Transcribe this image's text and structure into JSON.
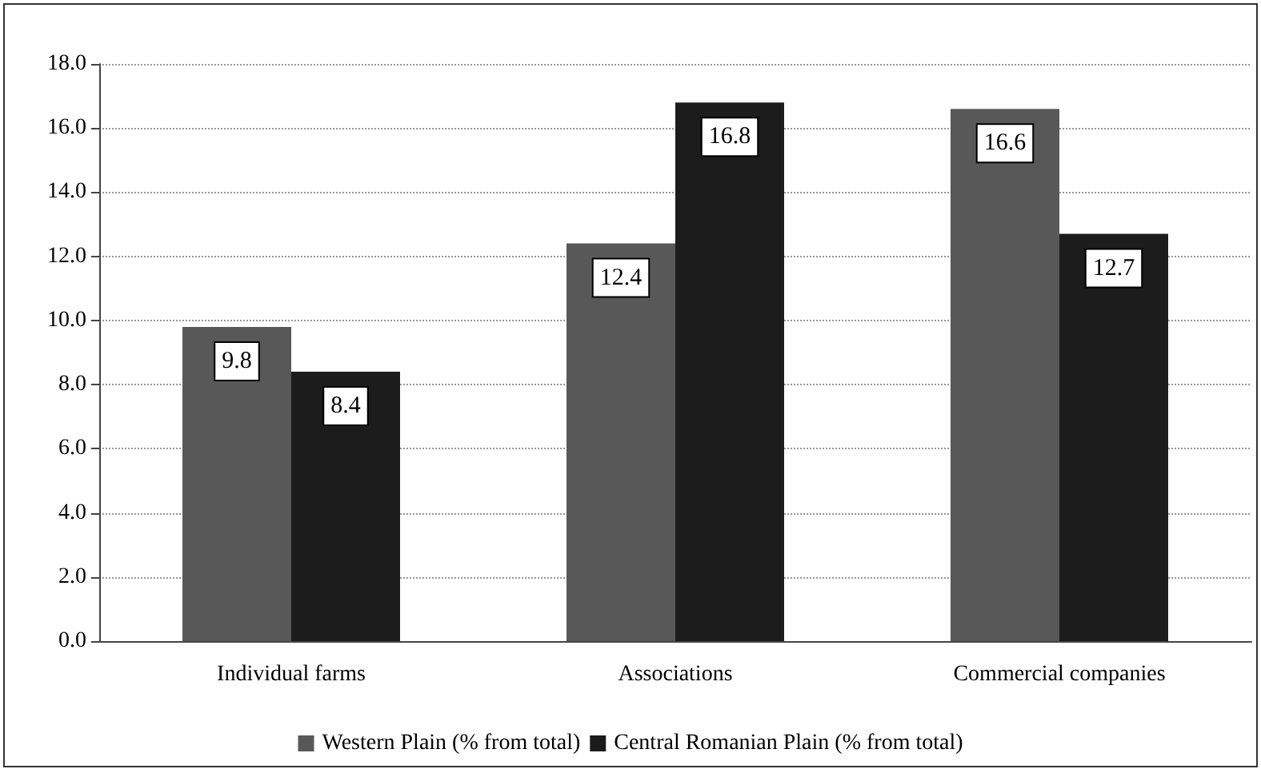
{
  "chart_data": {
    "type": "bar",
    "categories": [
      "Individual farms",
      "Associations",
      "Commercial companies"
    ],
    "series": [
      {
        "name": "Western Plain (% from total)",
        "color": "#585858",
        "values": [
          9.8,
          12.4,
          16.6
        ]
      },
      {
        "name": "Central Romanian Plain (% from total)",
        "color": "#1c1c1c",
        "values": [
          8.4,
          16.8,
          12.7
        ]
      }
    ],
    "ylim": [
      0,
      18
    ],
    "yticks": [
      {
        "value": 0,
        "label": "0.0"
      },
      {
        "value": 2,
        "label": "2.0"
      },
      {
        "value": 4,
        "label": "4.0"
      },
      {
        "value": 6,
        "label": "6.0"
      },
      {
        "value": 8,
        "label": "8.0"
      },
      {
        "value": 10,
        "label": "10.0"
      },
      {
        "value": 12,
        "label": "12.0"
      },
      {
        "value": 14,
        "label": "14.0"
      },
      {
        "value": 16,
        "label": "16.0"
      },
      {
        "value": 18,
        "label": "18.0"
      }
    ],
    "grid": "y",
    "legend": "bottom",
    "data_labels": true
  }
}
